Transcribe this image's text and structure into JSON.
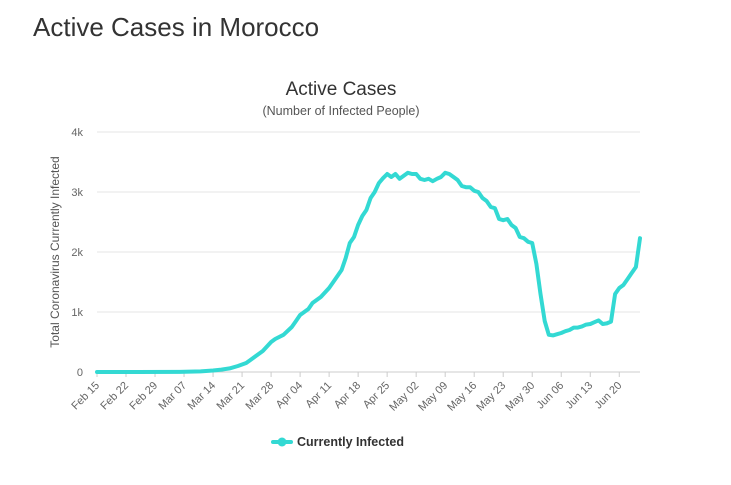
{
  "page": {
    "title": "Active Cases in Morocco"
  },
  "chart_data": {
    "type": "line",
    "title": "Active Cases",
    "subtitle": "(Number of Infected People)",
    "xlabel": "",
    "ylabel": "Total Coronavirus Currently Infected",
    "ylim": [
      0,
      4000
    ],
    "yticks": [
      {
        "value": 0,
        "label": "0"
      },
      {
        "value": 1000,
        "label": "1k"
      },
      {
        "value": 2000,
        "label": "2k"
      },
      {
        "value": 3000,
        "label": "3k"
      },
      {
        "value": 4000,
        "label": "4k"
      }
    ],
    "xticks": [
      {
        "day": 0,
        "label": "Feb 15"
      },
      {
        "day": 7,
        "label": "Feb 22"
      },
      {
        "day": 14,
        "label": "Feb 29"
      },
      {
        "day": 21,
        "label": "Mar 07"
      },
      {
        "day": 28,
        "label": "Mar 14"
      },
      {
        "day": 35,
        "label": "Mar 21"
      },
      {
        "day": 42,
        "label": "Mar 28"
      },
      {
        "day": 49,
        "label": "Apr 04"
      },
      {
        "day": 56,
        "label": "Apr 11"
      },
      {
        "day": 63,
        "label": "Apr 18"
      },
      {
        "day": 70,
        "label": "Apr 25"
      },
      {
        "day": 77,
        "label": "May 02"
      },
      {
        "day": 84,
        "label": "May 09"
      },
      {
        "day": 91,
        "label": "May 16"
      },
      {
        "day": 98,
        "label": "May 23"
      },
      {
        "day": 105,
        "label": "May 30"
      },
      {
        "day": 112,
        "label": "Jun 06"
      },
      {
        "day": 119,
        "label": "Jun 13"
      },
      {
        "day": 126,
        "label": "Jun 20"
      }
    ],
    "grid": true,
    "legend_position": "bottom-center",
    "series": [
      {
        "name": "Currently Infected",
        "color": "#33d9d3",
        "points": [
          [
            0,
            0
          ],
          [
            10,
            0
          ],
          [
            20,
            2
          ],
          [
            25,
            10
          ],
          [
            28,
            25
          ],
          [
            30,
            40
          ],
          [
            32,
            60
          ],
          [
            34,
            100
          ],
          [
            36,
            150
          ],
          [
            37,
            200
          ],
          [
            38,
            250
          ],
          [
            40,
            350
          ],
          [
            42,
            500
          ],
          [
            43,
            550
          ],
          [
            45,
            620
          ],
          [
            47,
            750
          ],
          [
            48,
            850
          ],
          [
            49,
            950
          ],
          [
            51,
            1050
          ],
          [
            52,
            1150
          ],
          [
            54,
            1250
          ],
          [
            56,
            1400
          ],
          [
            57,
            1500
          ],
          [
            59,
            1700
          ],
          [
            60,
            1900
          ],
          [
            61,
            2150
          ],
          [
            62,
            2250
          ],
          [
            63,
            2450
          ],
          [
            64,
            2600
          ],
          [
            65,
            2700
          ],
          [
            66,
            2900
          ],
          [
            67,
            3000
          ],
          [
            68,
            3150
          ],
          [
            69,
            3230
          ],
          [
            70,
            3300
          ],
          [
            71,
            3250
          ],
          [
            72,
            3300
          ],
          [
            73,
            3220
          ],
          [
            75,
            3320
          ],
          [
            76,
            3300
          ],
          [
            77,
            3300
          ],
          [
            78,
            3220
          ],
          [
            79,
            3200
          ],
          [
            80,
            3220
          ],
          [
            81,
            3180
          ],
          [
            82,
            3220
          ],
          [
            83,
            3250
          ],
          [
            84,
            3320
          ],
          [
            85,
            3300
          ],
          [
            86,
            3250
          ],
          [
            87,
            3200
          ],
          [
            88,
            3100
          ],
          [
            89,
            3080
          ],
          [
            90,
            3080
          ],
          [
            91,
            3020
          ],
          [
            92,
            3000
          ],
          [
            93,
            2900
          ],
          [
            94,
            2850
          ],
          [
            95,
            2750
          ],
          [
            96,
            2730
          ],
          [
            97,
            2550
          ],
          [
            98,
            2530
          ],
          [
            99,
            2550
          ],
          [
            100,
            2450
          ],
          [
            101,
            2400
          ],
          [
            102,
            2250
          ],
          [
            103,
            2230
          ],
          [
            104,
            2170
          ],
          [
            105,
            2150
          ],
          [
            106,
            1800
          ],
          [
            107,
            1300
          ],
          [
            108,
            850
          ],
          [
            109,
            620
          ],
          [
            110,
            610
          ],
          [
            111,
            630
          ],
          [
            112,
            650
          ],
          [
            113,
            680
          ],
          [
            114,
            700
          ],
          [
            115,
            740
          ],
          [
            116,
            740
          ],
          [
            117,
            760
          ],
          [
            118,
            790
          ],
          [
            119,
            800
          ],
          [
            120,
            830
          ],
          [
            121,
            860
          ],
          [
            122,
            800
          ],
          [
            123,
            810
          ],
          [
            124,
            840
          ],
          [
            125,
            1300
          ],
          [
            126,
            1400
          ],
          [
            127,
            1450
          ],
          [
            128,
            1550
          ],
          [
            129,
            1650
          ],
          [
            130,
            1750
          ],
          [
            131,
            2230
          ]
        ]
      }
    ]
  }
}
